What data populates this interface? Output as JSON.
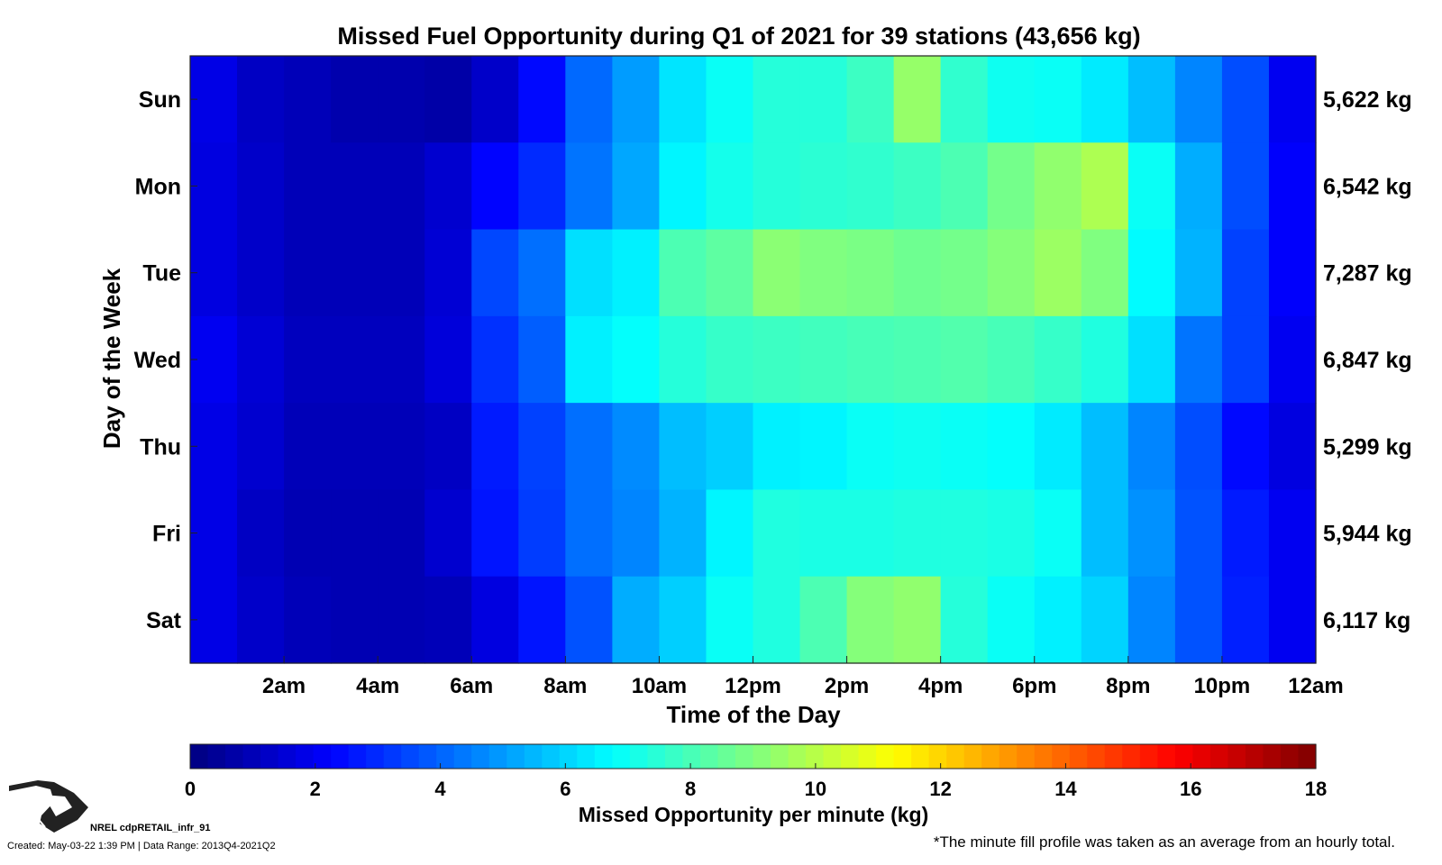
{
  "chart_data": {
    "type": "heatmap",
    "title": "Missed Fuel Opportunity during Q1 of 2021 for 39 stations (43,656 kg)",
    "xlabel": "Time of the Day",
    "ylabel": "Day of the Week",
    "x_tick_labels": [
      "2am",
      "4am",
      "6am",
      "8am",
      "10am",
      "12pm",
      "2pm",
      "4pm",
      "6pm",
      "8pm",
      "10pm",
      "12am"
    ],
    "x_tick_hours": [
      2,
      4,
      6,
      8,
      10,
      12,
      14,
      16,
      18,
      20,
      22,
      24
    ],
    "xlim_hours": [
      0,
      24
    ],
    "rows": [
      "Sun",
      "Mon",
      "Tue",
      "Wed",
      "Thu",
      "Fri",
      "Sat"
    ],
    "row_totals": [
      "5,622 kg",
      "6,542 kg",
      "7,287 kg",
      "6,847 kg",
      "5,299 kg",
      "5,944 kg",
      "6,117 kg"
    ],
    "hourly_values_kg_per_min": [
      [
        1.8,
        1.2,
        1.0,
        0.8,
        0.8,
        0.7,
        1.3,
        2.4,
        4.1,
        5.0,
        6.3,
        6.9,
        7.4,
        7.4,
        7.8,
        9.4,
        7.6,
        7.0,
        6.9,
        6.4,
        5.6,
        4.6,
        3.6,
        2.0
      ],
      [
        1.7,
        1.3,
        1.0,
        1.0,
        1.0,
        1.4,
        2.3,
        3.0,
        4.3,
        5.2,
        6.6,
        7.1,
        7.4,
        7.5,
        7.6,
        7.8,
        8.1,
        8.8,
        9.3,
        9.8,
        6.9,
        5.3,
        3.6,
        2.2
      ],
      [
        1.7,
        1.3,
        1.0,
        1.0,
        1.0,
        1.5,
        3.5,
        4.2,
        6.2,
        6.5,
        8.1,
        8.4,
        9.2,
        9.0,
        8.9,
        8.7,
        8.8,
        9.1,
        9.5,
        9.0,
        6.7,
        5.4,
        3.4,
        2.2
      ],
      [
        2.0,
        1.5,
        1.1,
        1.1,
        1.1,
        1.6,
        3.1,
        3.9,
        6.5,
        6.8,
        7.4,
        7.7,
        7.8,
        7.9,
        8.0,
        8.1,
        8.2,
        8.0,
        7.7,
        7.3,
        6.2,
        4.3,
        3.4,
        2.0
      ],
      [
        1.8,
        1.4,
        1.0,
        1.0,
        1.0,
        1.2,
        2.7,
        3.4,
        4.2,
        4.7,
        5.6,
        5.9,
        6.5,
        6.6,
        6.9,
        7.0,
        6.9,
        6.8,
        6.4,
        5.6,
        4.6,
        3.6,
        2.4,
        1.7
      ],
      [
        1.8,
        1.2,
        0.9,
        0.9,
        0.9,
        1.4,
        2.6,
        3.3,
        4.2,
        4.6,
        5.4,
        6.6,
        7.3,
        7.2,
        7.2,
        7.3,
        7.3,
        7.2,
        6.9,
        5.6,
        4.8,
        3.7,
        2.7,
        2.0
      ],
      [
        1.8,
        1.3,
        1.0,
        0.9,
        0.9,
        1.0,
        1.7,
        2.6,
        3.7,
        5.3,
        5.9,
        6.9,
        7.3,
        8.1,
        9.1,
        9.3,
        7.4,
        6.9,
        6.5,
        6.0,
        4.6,
        3.7,
        2.8,
        2.0
      ]
    ],
    "colorbar": {
      "colormap": "jet",
      "range": [
        0,
        18
      ],
      "ticks": [
        0,
        2,
        4,
        6,
        8,
        10,
        12,
        14,
        16,
        18
      ],
      "label": "Missed Opportunity per minute (kg)"
    }
  },
  "footer": {
    "source_id": "NREL cdpRETAIL_infr_91",
    "created": "Created: May-03-22  1:39 PM | Data Range: 2013Q4-2021Q2",
    "note": "*The minute fill profile was taken as an average from an hourly total."
  }
}
